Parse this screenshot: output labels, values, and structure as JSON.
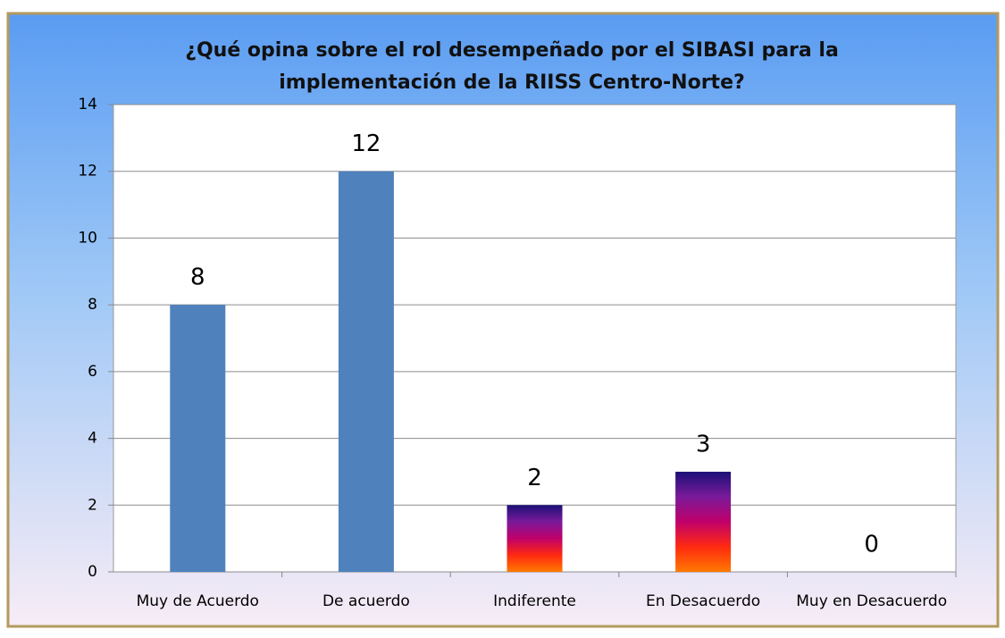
{
  "chart_data": {
    "type": "bar",
    "title": [
      "¿Qué opina sobre el rol desempeñado por el SIBASI para la",
      "implementación de la RIISS Centro-Norte?"
    ],
    "categories": [
      "Muy de Acuerdo",
      "De acuerdo",
      "Indiferente",
      "En Desacuerdo",
      "Muy en Desacuerdo"
    ],
    "values": [
      8,
      12,
      2,
      3,
      0
    ],
    "colors": [
      "#4f81bd",
      "#4f81bd",
      [
        "#1b1077",
        "#7a1a9a",
        "#c0006a",
        "#ff2a10",
        "#ff7a00"
      ],
      [
        "#1b1077",
        "#7a1a9a",
        "#c0006a",
        "#ff2a10",
        "#ff7a00"
      ],
      [
        "#1b1077",
        "#7a1a9a",
        "#c0006a",
        "#ff2a10",
        "#ff7a00"
      ]
    ],
    "ylim": [
      0,
      14
    ],
    "yticks": [
      0,
      2,
      4,
      6,
      8,
      10,
      12,
      14
    ],
    "grid": true
  }
}
